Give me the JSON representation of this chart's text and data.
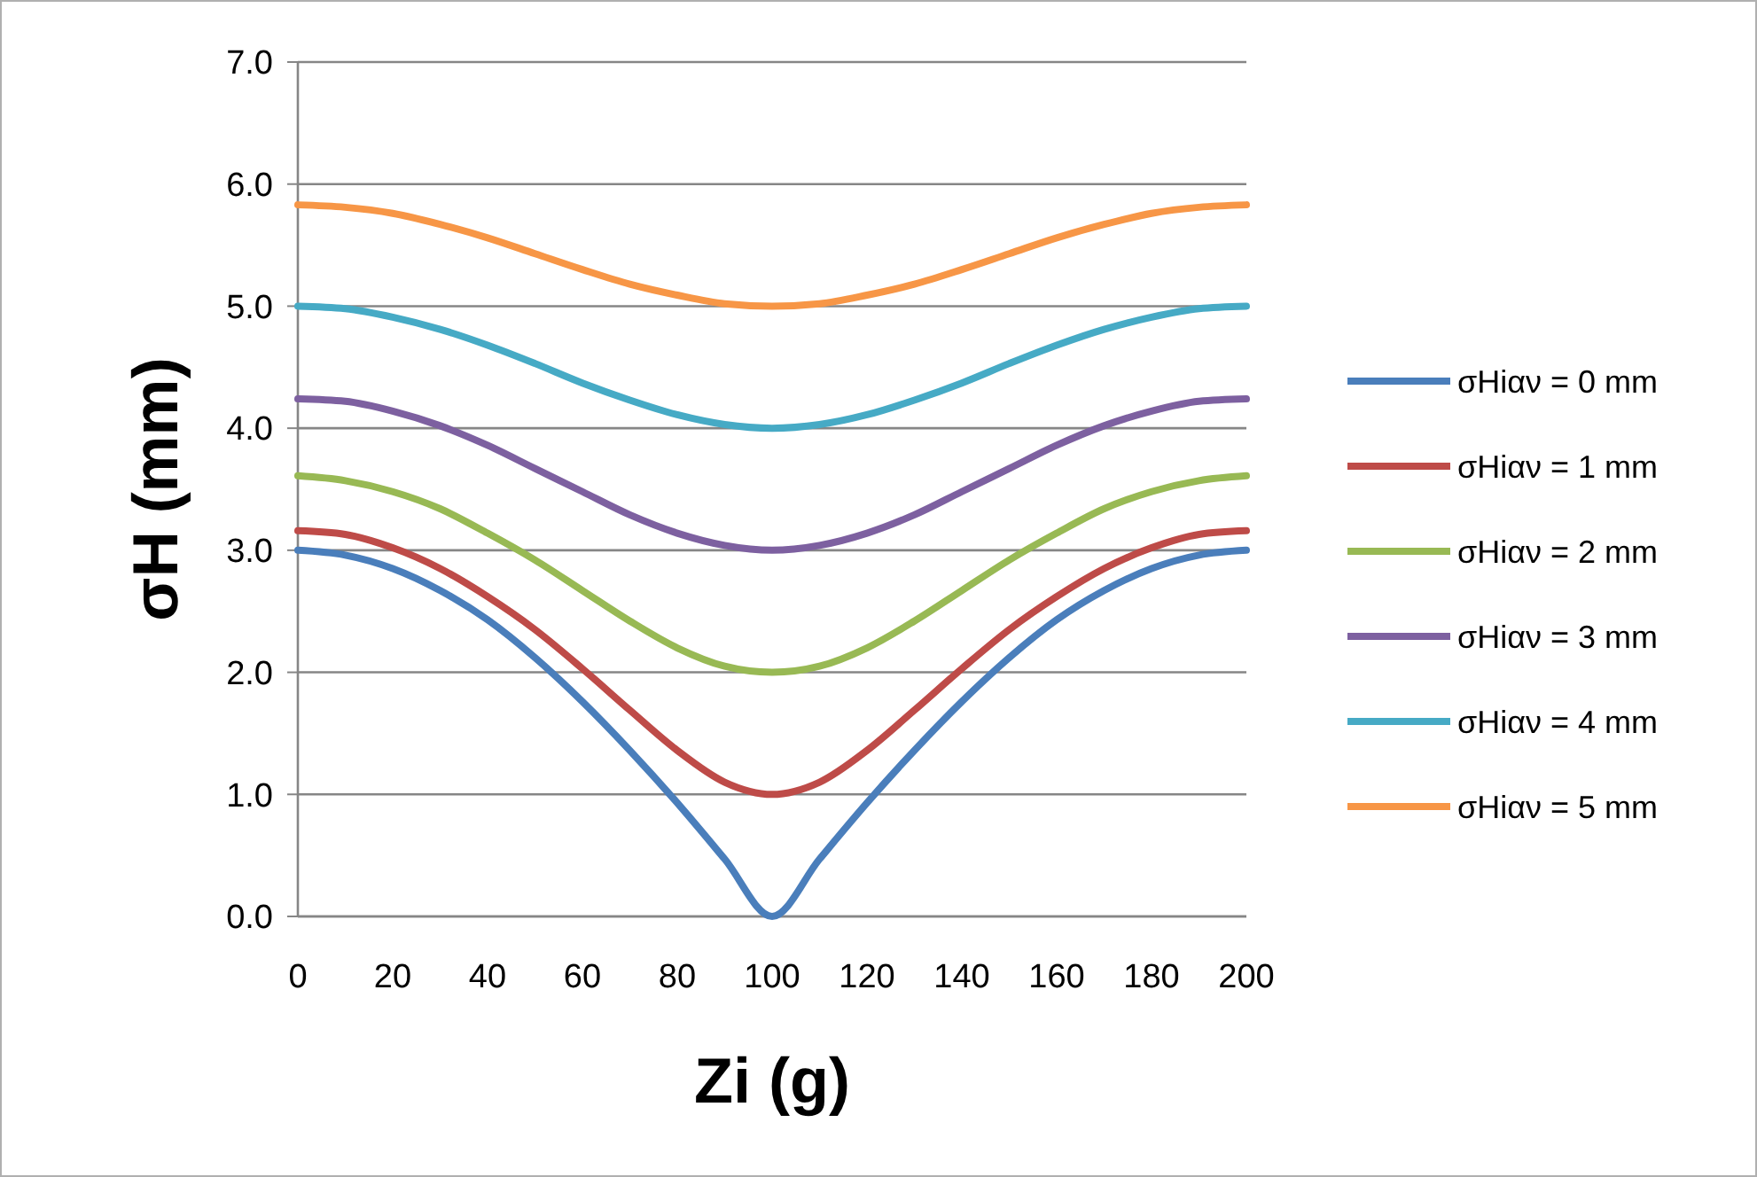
{
  "chart_data": {
    "type": "line",
    "xlabel": "Zi (g)",
    "ylabel": "σH (mm)",
    "x": [
      0,
      10,
      20,
      30,
      40,
      50,
      60,
      70,
      80,
      90,
      100,
      110,
      120,
      130,
      140,
      150,
      160,
      170,
      180,
      190,
      200
    ],
    "xlim": [
      0,
      200
    ],
    "xticks": [
      0,
      20,
      40,
      60,
      80,
      100,
      120,
      140,
      160,
      180,
      200
    ],
    "ylim": [
      0,
      7
    ],
    "yticks": [
      {
        "value": 0,
        "label": "0.0"
      },
      {
        "value": 1,
        "label": "1.0"
      },
      {
        "value": 2,
        "label": "2.0"
      },
      {
        "value": 3,
        "label": "3.0"
      },
      {
        "value": 4,
        "label": "4.0"
      },
      {
        "value": 5,
        "label": "5.0"
      },
      {
        "value": 6,
        "label": "6.0"
      },
      {
        "value": 7,
        "label": "7.0"
      }
    ],
    "grid": "y",
    "legend": "right",
    "marker": "none",
    "line_style": "solid",
    "series": [
      {
        "name": "σHiαν = 0 mm",
        "color": "#4a7ebb",
        "values": [
          3.0,
          2.96,
          2.85,
          2.67,
          2.43,
          2.12,
          1.76,
          1.36,
          0.93,
          0.47,
          0.0,
          0.47,
          0.93,
          1.36,
          1.76,
          2.12,
          2.43,
          2.67,
          2.85,
          2.96,
          3.0
        ]
      },
      {
        "name": "σHiαν = 1 mm",
        "color": "#be4b48",
        "values": [
          3.16,
          3.13,
          3.02,
          2.85,
          2.62,
          2.35,
          2.03,
          1.69,
          1.36,
          1.1,
          1.0,
          1.1,
          1.36,
          1.69,
          2.03,
          2.35,
          2.62,
          2.85,
          3.02,
          3.13,
          3.16
        ]
      },
      {
        "name": "σHiαν = 2 mm",
        "color": "#98b954",
        "values": [
          3.61,
          3.57,
          3.48,
          3.34,
          3.14,
          2.92,
          2.67,
          2.42,
          2.2,
          2.05,
          2.0,
          2.05,
          2.2,
          2.42,
          2.67,
          2.92,
          3.14,
          3.34,
          3.48,
          3.57,
          3.61
        ]
      },
      {
        "name": "σHiαν = 3 mm",
        "color": "#7d60a0",
        "values": [
          4.24,
          4.22,
          4.14,
          4.02,
          3.86,
          3.67,
          3.48,
          3.29,
          3.14,
          3.04,
          3.0,
          3.04,
          3.14,
          3.29,
          3.48,
          3.67,
          3.86,
          4.02,
          4.14,
          4.22,
          4.24
        ]
      },
      {
        "name": "σHiαν = 4 mm",
        "color": "#46aac5",
        "values": [
          5.0,
          4.98,
          4.91,
          4.81,
          4.68,
          4.53,
          4.37,
          4.23,
          4.11,
          4.03,
          4.0,
          4.03,
          4.11,
          4.23,
          4.37,
          4.53,
          4.68,
          4.81,
          4.91,
          4.98,
          5.0
        ]
      },
      {
        "name": "σHiαν = 5 mm",
        "color": "#f79646",
        "values": [
          5.83,
          5.81,
          5.76,
          5.67,
          5.56,
          5.43,
          5.3,
          5.18,
          5.09,
          5.02,
          5.0,
          5.02,
          5.09,
          5.18,
          5.3,
          5.43,
          5.56,
          5.67,
          5.76,
          5.81,
          5.83
        ]
      }
    ]
  }
}
